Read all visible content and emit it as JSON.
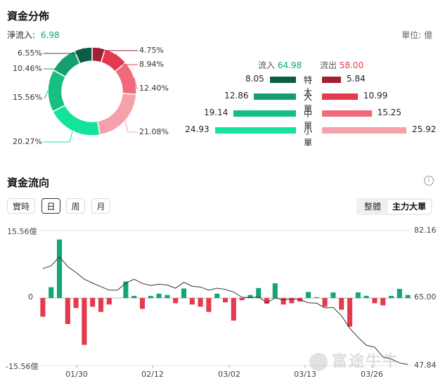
{
  "fund_distribution": {
    "title": "資金分佈",
    "net_inflow_label": "淨流入:",
    "net_inflow_value": "6.98",
    "unit_label": "單位: 億",
    "donut": {
      "slices": [
        {
          "label": "4.75%",
          "value": 4.75,
          "color": "#a31f34"
        },
        {
          "label": "8.94%",
          "value": 8.94,
          "color": "#e5394d"
        },
        {
          "label": "12.40%",
          "value": 12.4,
          "color": "#ef6a7a"
        },
        {
          "label": "21.08%",
          "value": 21.08,
          "color": "#f5a0ab"
        },
        {
          "label": "20.27%",
          "value": 20.27,
          "color": "#14e39a"
        },
        {
          "label": "15.56%",
          "value": 15.56,
          "color": "#16bf80"
        },
        {
          "label": "10.46%",
          "value": 10.46,
          "color": "#14a06c"
        },
        {
          "label": "6.55%",
          "value": 6.55,
          "color": "#0b5e44"
        }
      ]
    },
    "inflow_label": "流入",
    "inflow_total": "64.98",
    "outflow_label": "流出",
    "outflow_total": "58.00",
    "rows": [
      {
        "category": "特大",
        "in": "8.05",
        "in_value": 8.05,
        "out": "5.84",
        "out_value": 5.84,
        "in_color": "#0b5e44",
        "out_color": "#a31f34"
      },
      {
        "category": "大單",
        "in": "12.86",
        "in_value": 12.86,
        "out": "10.99",
        "out_value": 10.99,
        "in_color": "#14a06c",
        "out_color": "#e5394d"
      },
      {
        "category": "中單",
        "in": "19.14",
        "in_value": 19.14,
        "out": "15.25",
        "out_value": 15.25,
        "in_color": "#16bf80",
        "out_color": "#ef6a7a"
      },
      {
        "category": "小單",
        "in": "24.93",
        "in_value": 24.93,
        "out": "25.92",
        "out_value": 25.92,
        "in_color": "#14e39a",
        "out_color": "#f5a0ab"
      }
    ]
  },
  "fund_flow": {
    "title": "資金流向",
    "info_icon": "info-circle-icon",
    "period_tabs": [
      "實時",
      "日",
      "周",
      "月"
    ],
    "active_period": "日",
    "mode_tabs": [
      "整體",
      "主力大單"
    ],
    "active_mode": "主力大單",
    "watermark": "富途牛牛"
  },
  "chart_data": {
    "type": "bar",
    "left_axis_ticks": [
      "15.56億",
      "0",
      "-15.56億"
    ],
    "right_axis_ticks": [
      "82.16",
      "65.00",
      "47.84"
    ],
    "x_tick_labels": [
      "01/30",
      "02/12",
      "03/02",
      "03/13",
      "03/26"
    ],
    "ylim_left": [
      -15.56,
      15.56
    ],
    "ylim_right": [
      47.84,
      82.16
    ],
    "bar_series_values": [
      -4.3,
      2.5,
      13.5,
      -6.0,
      -2.3,
      -10.8,
      -2.0,
      -3.2,
      -1.5,
      0,
      3.8,
      0.5,
      -2.5,
      0.5,
      1.0,
      0.7,
      -1.2,
      2.2,
      -1.5,
      -2.0,
      -3.2,
      1.0,
      -1.0,
      -5.2,
      -0.5,
      0.7,
      2.3,
      -1.3,
      3.4,
      -1.5,
      -1.2,
      -0.8,
      1.4,
      0.2,
      -2.0,
      1.3,
      -2.7,
      -6.6,
      1.3,
      0.5,
      -1.2,
      -1.7,
      0.5,
      2.1,
      0.7
    ],
    "line_series_values": [
      72.5,
      73.2,
      75.5,
      73.0,
      71.5,
      69.8,
      68.8,
      67.9,
      67.0,
      67.0,
      68.8,
      69.8,
      68.7,
      68.2,
      68.5,
      68.3,
      67.5,
      69.0,
      68.0,
      67.8,
      67.0,
      67.5,
      67.2,
      66.5,
      65.2,
      65.1,
      65.3,
      63.8,
      65.0,
      64.5,
      64.8,
      64.6,
      63.8,
      63.7,
      62.5,
      62.6,
      60.5,
      57.3,
      55.0,
      53.0,
      52.5,
      50.0,
      49.5,
      48.5,
      48.1
    ]
  }
}
